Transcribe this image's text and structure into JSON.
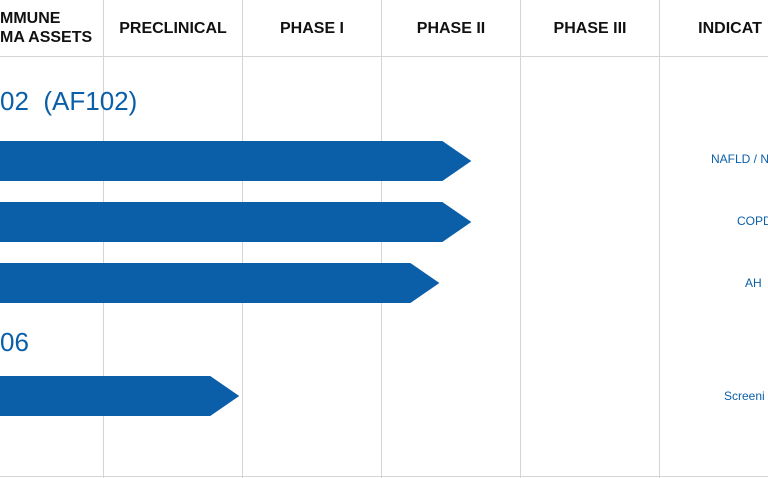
{
  "colors": {
    "bar": "#0b5fa8",
    "text_blue": "#0b5fa8",
    "grid": "#d4d4d4",
    "header_text": "#111111"
  },
  "header": {
    "col0": "MMUNE\nMA ASSETS",
    "preclinical": "PRECLINICAL",
    "phase1": "PHASE I",
    "phase2": "PHASE II",
    "phase3": "PHASE III",
    "indication": "INDICAT"
  },
  "assets": [
    {
      "label": "02  (AF102)"
    },
    {
      "label": "06"
    }
  ],
  "chart_data": {
    "type": "bar",
    "orientation": "horizontal",
    "stages": [
      "PRECLINICAL",
      "PHASE I",
      "PHASE II",
      "PHASE III"
    ],
    "programs": [
      {
        "asset": "02  (AF102)",
        "indication": "NAFLD / N",
        "progress_stage": 2.65
      },
      {
        "asset": "02  (AF102)",
        "indication": "COPD",
        "progress_stage": 2.65
      },
      {
        "asset": "02  (AF102)",
        "indication": "AH",
        "progress_stage": 2.42
      },
      {
        "asset": "06",
        "indication": "Screeni",
        "progress_stage": 0.98
      }
    ]
  }
}
